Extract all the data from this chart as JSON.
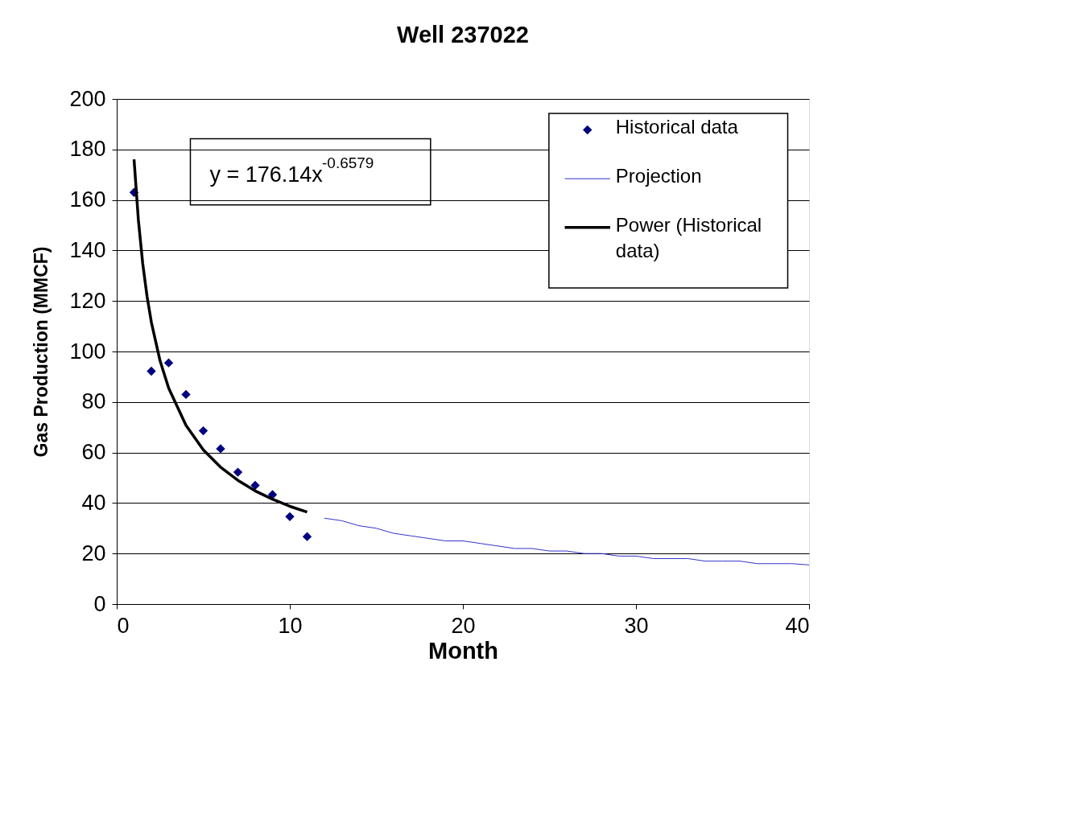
{
  "chart_data": {
    "type": "scatter",
    "title": "Well 237022",
    "xlabel": "Month",
    "ylabel": "Gas Production (MMCF)",
    "xlim": [
      0,
      40
    ],
    "xticks": [
      0,
      10,
      20,
      30,
      40
    ],
    "ylim": [
      0,
      200
    ],
    "yticks": [
      0,
      20,
      40,
      60,
      80,
      100,
      120,
      140,
      160,
      180,
      200
    ],
    "grid": "y",
    "legend": "top right",
    "annotations": [
      "y = 176.14x$^{-0.6579}$"
    ],
    "series": [
      {
        "name": "Historical data",
        "type": "scatter",
        "marker": "diamond",
        "color": "#000080",
        "x": [
          1,
          2,
          3,
          4,
          5,
          6,
          7,
          8,
          9,
          10,
          11
        ],
        "values": [
          163,
          92.2,
          95.5,
          83,
          68.6,
          61.5,
          52.2,
          47,
          43.3,
          34.6,
          26.7
        ]
      },
      {
        "name": "Projection",
        "type": "line",
        "color": "#3333cc",
        "x": [
          12,
          13,
          14,
          15,
          16,
          17,
          18,
          19,
          20,
          21,
          22,
          23,
          24,
          25,
          26,
          27,
          28,
          29,
          30,
          31,
          32,
          33,
          34,
          35,
          36,
          37,
          38,
          39,
          40
        ],
        "values": [
          34,
          33,
          31,
          30,
          28,
          27,
          26,
          25,
          25,
          24,
          23,
          22,
          22,
          21,
          21,
          20,
          20,
          19,
          19,
          18,
          18,
          18,
          17,
          17,
          17,
          16,
          16,
          16,
          15.5
        ]
      },
      {
        "name": "Power (Historical data)",
        "type": "line",
        "color": "#000000",
        "x": [
          1,
          1.25,
          1.5,
          1.75,
          2,
          2.5,
          3,
          4,
          5,
          6,
          7,
          8,
          9,
          10,
          11
        ],
        "values": [
          176.1,
          152.1,
          134.9,
          121.9,
          111.6,
          96.4,
          85.5,
          70.8,
          61.1,
          54.2,
          49.0,
          44.8,
          41.5,
          38.7,
          36.4
        ]
      }
    ]
  }
}
